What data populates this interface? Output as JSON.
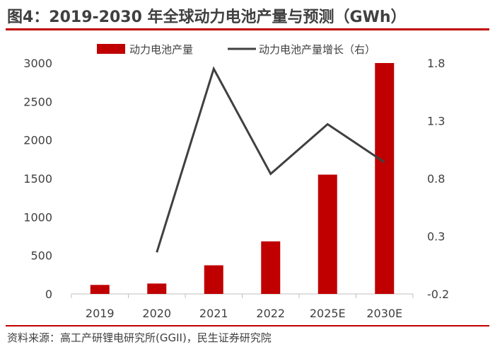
{
  "title": "图4：2019-2030 年全球动力电池产量与预测（GWh）",
  "source": "资料来源：高工产研锂电研究所(GGII)，民生证券研究院",
  "colors": {
    "bar": "#c00000",
    "line": "#404040",
    "accent": "#c00000"
  },
  "chart_data": {
    "type": "bar",
    "categories": [
      "2019",
      "2020",
      "2021",
      "2022",
      "2025E",
      "2030E"
    ],
    "series": [
      {
        "name": "动力电池产量",
        "type": "bar",
        "axis": "left",
        "values": [
          117,
          135,
          372,
          683,
          1550,
          3000
        ]
      },
      {
        "name": "动力电池产量增长（右）",
        "type": "line",
        "axis": "right",
        "values": [
          null,
          0.16,
          1.75,
          0.84,
          1.27,
          0.94
        ]
      }
    ],
    "y_left": {
      "range": [
        0,
        3000
      ],
      "ticks": [
        0,
        500,
        1000,
        1500,
        2000,
        2500,
        3000
      ]
    },
    "y_right": {
      "range": [
        -0.2,
        1.8
      ],
      "ticks": [
        "-0.2",
        "0.3",
        "0.8",
        "1.3",
        "1.8"
      ]
    },
    "legend_position": "top",
    "grid": false
  }
}
